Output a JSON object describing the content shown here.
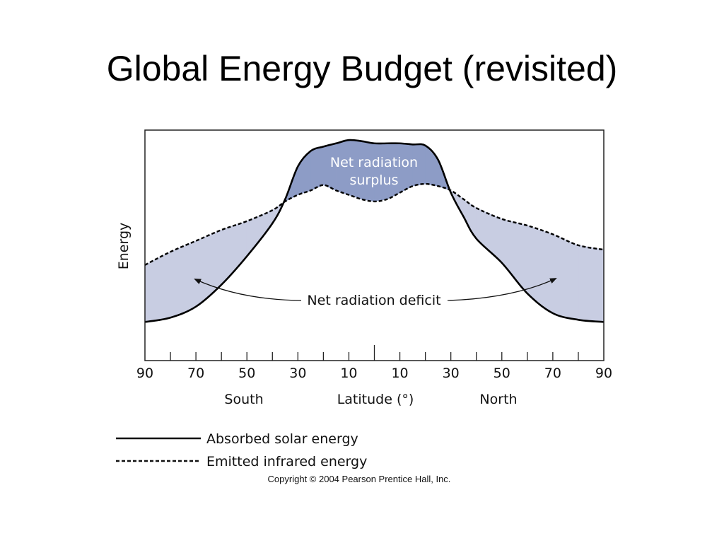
{
  "slide": {
    "title": "Global Energy Budget (revisited)"
  },
  "chart_data": {
    "type": "line",
    "ylabel": "Energy",
    "xlabel": "Latitude (°)",
    "hemisphere_labels": [
      "South",
      "North"
    ],
    "x_ticks": [
      "90",
      "70",
      "50",
      "30",
      "10",
      "10",
      "30",
      "50",
      "70",
      "90"
    ],
    "x": [
      -90,
      -80,
      -70,
      -60,
      -50,
      -40,
      -35,
      -30,
      -25,
      -20,
      -15,
      -10,
      -5,
      0,
      5,
      10,
      15,
      20,
      25,
      30,
      35,
      40,
      50,
      60,
      70,
      80,
      90
    ],
    "xlim": [
      -90,
      90
    ],
    "ylim": [
      0,
      10
    ],
    "series": [
      {
        "name": "Absorbed solar energy",
        "style": "solid",
        "values": [
          1.6,
          1.8,
          2.3,
          3.3,
          4.6,
          6.1,
          7.2,
          8.7,
          9.4,
          9.6,
          9.75,
          9.9,
          9.85,
          9.75,
          9.75,
          9.75,
          9.7,
          9.65,
          9.0,
          7.5,
          6.4,
          5.4,
          4.3,
          2.9,
          2.0,
          1.7,
          1.6
        ]
      },
      {
        "name": "Emitted infrared energy",
        "style": "dashed",
        "values": [
          4.2,
          4.8,
          5.3,
          5.8,
          6.2,
          6.7,
          7.1,
          7.4,
          7.6,
          7.85,
          7.6,
          7.4,
          7.2,
          7.1,
          7.2,
          7.5,
          7.8,
          7.9,
          7.8,
          7.6,
          7.2,
          6.8,
          6.3,
          6.0,
          5.6,
          5.1,
          4.9
        ]
      }
    ],
    "annotations": {
      "surplus": [
        "Net radiation",
        "surplus"
      ],
      "deficit": "Net radiation deficit"
    },
    "colors": {
      "surplus_fill": "#8d9cc6",
      "deficit_fill": "#c8cde2",
      "line": "#000000"
    },
    "grid": false,
    "legend_position": "bottom-left"
  },
  "copyright": "Copyright © 2004 Pearson Prentice Hall, Inc."
}
